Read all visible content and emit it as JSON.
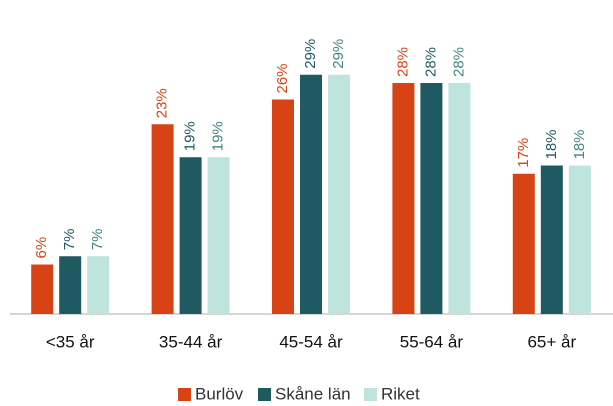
{
  "chart_data": {
    "type": "bar",
    "categories": [
      "<35 år",
      "35-44 år",
      "45-54 år",
      "55-64 år",
      "65+ år"
    ],
    "series": [
      {
        "name": "Burlöv",
        "color": "#d84315",
        "label_color": "#d84315",
        "values": [
          6,
          23,
          26,
          28,
          17
        ],
        "value_labels": [
          "6%",
          "23%",
          "26%",
          "28%",
          "17%"
        ]
      },
      {
        "name": "Skåne län",
        "color": "#1f5962",
        "label_color": "#1f5962",
        "values": [
          7,
          19,
          29,
          28,
          18
        ],
        "value_labels": [
          "7%",
          "19%",
          "29%",
          "28%",
          "18%"
        ]
      },
      {
        "name": "Riket",
        "color": "#bfe4de",
        "label_color": "#3f8584",
        "values": [
          7,
          19,
          29,
          28,
          18
        ],
        "value_labels": [
          "7%",
          "19%",
          "29%",
          "28%",
          "18%"
        ]
      }
    ],
    "ylim": [
      0,
      38
    ],
    "legend": "bottom"
  }
}
